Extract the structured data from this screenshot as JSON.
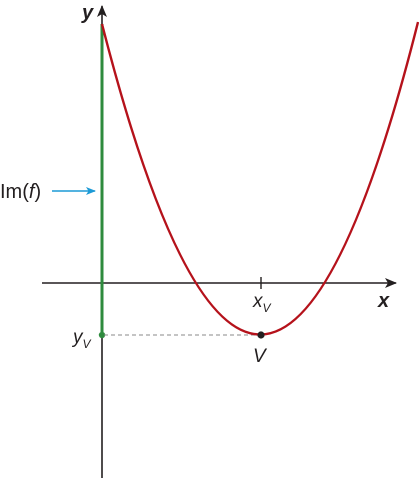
{
  "diagram": {
    "axes": {
      "x_label": "x",
      "y_label": "y"
    },
    "vertex": {
      "label": "V",
      "x_label_main": "x",
      "x_label_sub": "V",
      "y_label_main": "y",
      "y_label_sub": "V"
    },
    "image_label": {
      "prefix": "Im(",
      "var": "f",
      "suffix": ")"
    },
    "colors": {
      "curve": "#b5121b",
      "image_segment": "#2e8b3e",
      "arrow": "#1c9ad6",
      "axes": "#231f20",
      "dashed_guide": "#888888"
    }
  }
}
